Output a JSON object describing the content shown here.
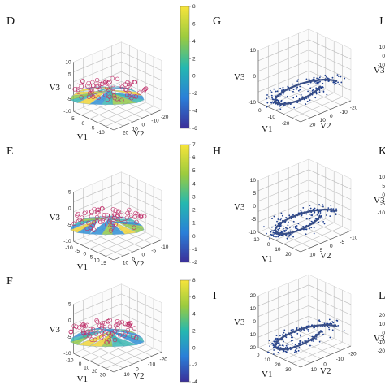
{
  "colors": {
    "surface_low": "#3a3fa8",
    "surface_mid": "#26b4b0",
    "surface_high": "#f2e23a",
    "circle": "#c0306a",
    "points": "#1f3f8f",
    "curve": "#3a4f86"
  },
  "chart_data": [
    {
      "panel": "D",
      "type": "surface3d",
      "xlabel": "V1",
      "ylabel": "V2",
      "zlabel": "V3",
      "v1_ticks": [
        "5",
        "0",
        "-5",
        "-10"
      ],
      "v2_ticks": [
        "20",
        "10",
        "0",
        "-10",
        "-20"
      ],
      "v3_ticks": [
        "10",
        "5",
        "0",
        "-5",
        "-10"
      ],
      "colorbar": {
        "ticks": [
          "8",
          "6",
          "4",
          "2",
          "0",
          "-2",
          "-4",
          "-6"
        ],
        "range": [
          -6,
          8
        ]
      }
    },
    {
      "panel": "E",
      "type": "surface3d",
      "xlabel": "V1",
      "ylabel": "V2",
      "zlabel": "V3",
      "v1_ticks": [
        "-10",
        "-5",
        "0",
        "5",
        "10",
        "15"
      ],
      "v2_ticks": [
        "10",
        "5",
        "0",
        "-5",
        "-10"
      ],
      "v3_ticks": [
        "5",
        "0",
        "-5",
        "-10"
      ],
      "colorbar": {
        "ticks": [
          "7",
          "6",
          "5",
          "4",
          "3",
          "2",
          "1",
          "0",
          "-1",
          "-2"
        ],
        "range": [
          -2,
          7
        ]
      }
    },
    {
      "panel": "F",
      "type": "surface3d",
      "xlabel": "V1",
      "ylabel": "V2",
      "zlabel": "V3",
      "v1_ticks": [
        "-10",
        "0",
        "10",
        "20",
        "30"
      ],
      "v2_ticks": [
        "10",
        "0",
        "-10",
        "-20"
      ],
      "v3_ticks": [
        "5",
        "0",
        "-5",
        "-10"
      ],
      "colorbar": {
        "ticks": [
          "8",
          "6",
          "4",
          "2",
          "0",
          "-2",
          "-4"
        ],
        "range": [
          -4,
          8
        ]
      }
    },
    {
      "panel": "G",
      "type": "scatter3d",
      "xlabel": "V1",
      "ylabel": "V2",
      "zlabel": "V3",
      "v1_ticks": [
        "0",
        "-10",
        "-20"
      ],
      "v2_ticks": [
        "20",
        "10",
        "0",
        "-10",
        "-20"
      ],
      "v3_ticks": [
        "10",
        "0",
        "-10"
      ]
    },
    {
      "panel": "H",
      "type": "scatter3d",
      "xlabel": "V1",
      "ylabel": "V2",
      "zlabel": "V3",
      "v1_ticks": [
        "-10",
        "0",
        "10",
        "20"
      ],
      "v2_ticks": [
        "10",
        "5",
        "0",
        "-5",
        "-10"
      ],
      "v3_ticks": [
        "10",
        "5",
        "0",
        "-5",
        "-10"
      ]
    },
    {
      "panel": "I",
      "type": "scatter3d",
      "xlabel": "V1",
      "ylabel": "V2",
      "zlabel": "V3",
      "v1_ticks": [
        "0",
        "10",
        "20",
        "30"
      ],
      "v2_ticks": [
        "10",
        "0",
        "-10",
        "-20"
      ],
      "v3_ticks": [
        "20",
        "10",
        "0",
        "-10",
        "-20"
      ]
    },
    {
      "panel": "J",
      "type": "scatter3d",
      "zlabel": "V3",
      "partial": true,
      "v3_ticks": [
        "10",
        "0",
        "-10"
      ]
    },
    {
      "panel": "K",
      "type": "scatter3d",
      "zlabel": "V3",
      "partial": true,
      "v3_ticks": [
        "10",
        "5",
        "0",
        "-5",
        "-10"
      ]
    },
    {
      "panel": "L",
      "type": "scatter3d",
      "zlabel": "V3",
      "partial": true,
      "v3_ticks": [
        "20",
        "10",
        "0",
        "-10",
        "-20"
      ]
    }
  ]
}
